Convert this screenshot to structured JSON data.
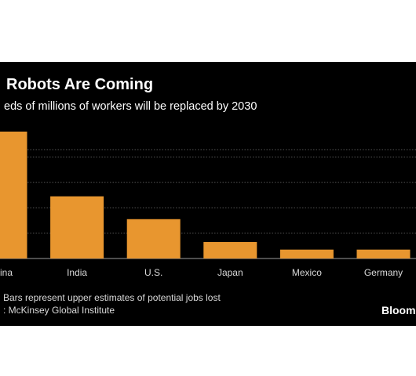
{
  "chart_data": {
    "type": "bar",
    "title": "Robots Are Coming",
    "subtitle": "eds of millions of workers will be replaced by 2030",
    "categories": [
      "ina",
      "India",
      "U.S.",
      "Japan",
      "Mexico",
      "Germany"
    ],
    "values": [
      100,
      49,
      31,
      13,
      7,
      7
    ],
    "ylim": [
      0,
      100
    ],
    "grid": true,
    "bar_color": "#e8962f",
    "grid_color": "#555555"
  },
  "footer": {
    "note": "Bars represent upper estimates of potential jobs lost",
    "source": ": McKinsey Global Institute",
    "brand": "Bloom"
  }
}
